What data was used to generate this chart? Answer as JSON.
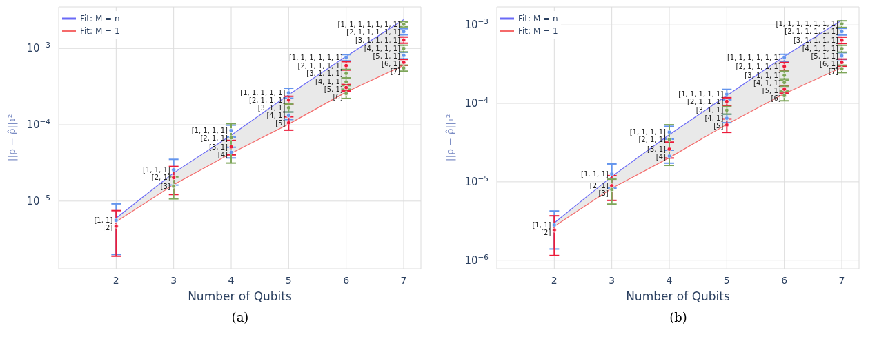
{
  "chart_data": [
    {
      "type": "scatter",
      "xlabel": "Number of Qubits",
      "ylabel": "||ρ − ρ̂||₁²",
      "xlim": [
        1,
        7.3
      ],
      "xticks": [
        2,
        3,
        4,
        5,
        6,
        7
      ],
      "ylim": [
        1.3e-06,
        0.0035
      ],
      "yticks": [
        {
          "value": 1e-05,
          "label": "10$^{−5}$"
        },
        {
          "value": 0.0001,
          "label": "10$^{−4}$"
        },
        {
          "value": 0.001,
          "label": "10$^{−3}$"
        }
      ],
      "log": true,
      "grid": true,
      "legend": "top left",
      "series": [
        {
          "type": "line",
          "marker": "none",
          "name": "Fit: M = n",
          "color": "#6a6af7",
          "x": [
            2,
            3,
            4,
            5,
            6,
            7
          ],
          "values": [
            6e-06,
            2.34e-05,
            7.3e-05,
            0.000247,
            0.000786,
            0.00238
          ],
          "lower": [
            5.37e-06,
            1.64e-05,
            4.23e-05,
            0.000102,
            0.000268,
            0.0006
          ],
          "upper": [
            6e-06,
            2.34e-05,
            7.3e-05,
            0.000247,
            0.000786,
            0.00238
          ]
        },
        {
          "type": "line",
          "marker": "none",
          "name": "Fit: M = 1",
          "color": "#f56a6a",
          "x": [
            2,
            3,
            4,
            5,
            6,
            7
          ],
          "values": [
            5.37e-06,
            1.64e-05,
            4.23e-05,
            0.000102,
            0.000268,
            0.0006
          ]
        },
        {
          "marker": "circle",
          "color": "#6495ed",
          "x": [
            2,
            3,
            4,
            4,
            5,
            5,
            6,
            7,
            7
          ],
          "values": [
            5.6e-06,
            2.57e-05,
            8.38e-05,
            4.37e-05,
            0.000262,
            0.000132,
            0.000759,
            0.00166,
            0.00081
          ],
          "errors": [
            3.6e-06,
            9.5e-06,
            1.5e-05,
            7e-06,
            3.9e-05,
            1.5e-05,
            7e-05,
            0.00015,
            8e-05
          ]
        },
        {
          "marker": "circle",
          "color": "#ec1c3a",
          "x": [
            2,
            3,
            4,
            5,
            5,
            6,
            6,
            7,
            7
          ],
          "values": [
            4.7e-06,
            2.03e-05,
            5.13e-05,
            0.000211,
            0.000106,
            0.000596,
            0.000307,
            0.00129,
            0.000658
          ],
          "errors": [
            2.8e-06,
            8.1e-06,
            1.1e-05,
            2.5e-05,
            2.1e-05,
            7.5e-05,
            3e-05,
            0.00012,
            6e-05
          ]
        },
        {
          "marker": "circle",
          "color": "#7ea65a",
          "x": [
            3,
            4,
            5,
            6,
            6,
            6,
            7,
            7,
            7
          ],
          "values": [
            1.57e-05,
            6.75e-05,
            0.000167,
            0.000471,
            0.000365,
            0.000257,
            0.00207,
            0.001,
            0.000554
          ],
          "errors": [
            5e-06,
            3.6e-05,
            2e-05,
            6e-05,
            4e-05,
            3.6e-05,
            0.00015,
            0.0001,
            5e-05
          ]
        }
      ],
      "annotations": [
        "(a)",
        {
          "text": "[1, 1]",
          "x": 2,
          "y": 5.6e-06
        },
        {
          "text": "[2]",
          "x": 2,
          "y": 4.7e-06
        },
        {
          "text": "[1, 1, 1]",
          "x": 3,
          "y": 2.57e-05
        },
        {
          "text": "[2, 1]",
          "x": 3,
          "y": 2.03e-05
        },
        {
          "text": "[3]",
          "x": 3,
          "y": 1.57e-05
        },
        {
          "text": "[1, 1, 1, 1]",
          "x": 4,
          "y": 8.38e-05
        },
        {
          "text": "[2, 1, 1]",
          "x": 4,
          "y": 6.75e-05
        },
        {
          "text": "[3, 1]",
          "x": 4,
          "y": 5.13e-05
        },
        {
          "text": "[4]",
          "x": 4,
          "y": 4.37e-05
        },
        {
          "text": "[1, 1, 1, 1, 1]",
          "x": 5,
          "y": 0.000262
        },
        {
          "text": "[2, 1, 1, 1]",
          "x": 5,
          "y": 0.000211
        },
        {
          "text": "[3, 1, 1]",
          "x": 5,
          "y": 0.000167
        },
        {
          "text": "[4, 1]",
          "x": 5,
          "y": 0.000132
        },
        {
          "text": "[5]",
          "x": 5,
          "y": 0.000106
        },
        {
          "text": "[1, 1, 1, 1, 1, 1]",
          "x": 6,
          "y": 0.000759
        },
        {
          "text": "[2, 1, 1, 1, 1]",
          "x": 6,
          "y": 0.000596
        },
        {
          "text": "[3, 1, 1, 1]",
          "x": 6,
          "y": 0.000471
        },
        {
          "text": "[4, 1, 1]",
          "x": 6,
          "y": 0.000365
        },
        {
          "text": "[5, 1]",
          "x": 6,
          "y": 0.000307
        },
        {
          "text": "[6]",
          "x": 6,
          "y": 0.000257
        },
        {
          "text": "[1, 1, 1, 1, 1, 1, 1]",
          "x": 7,
          "y": 0.00207
        },
        {
          "text": "[2, 1, 1, 1, 1, 1]",
          "x": 7,
          "y": 0.00166
        },
        {
          "text": "[3, 1, 1, 1, 1]",
          "x": 7,
          "y": 0.00129
        },
        {
          "text": "[4, 1, 1, 1]",
          "x": 7,
          "y": 0.001
        },
        {
          "text": "[5, 1, 1]",
          "x": 7,
          "y": 0.00081
        },
        {
          "text": "[6, 1]",
          "x": 7,
          "y": 0.000658
        },
        {
          "text": "[7]",
          "x": 7,
          "y": 0.000554
        }
      ]
    },
    {
      "type": "scatter",
      "xlabel": "Number of Qubits",
      "ylabel": "||ρ − ρ̂||₁²",
      "xlim": [
        1,
        7.3
      ],
      "xticks": [
        2,
        3,
        4,
        5,
        6,
        7
      ],
      "ylim": [
        7.8e-07,
        0.0017
      ],
      "yticks": [
        {
          "value": 1e-06,
          "label": "10$^{−6}$"
        },
        {
          "value": 1e-05,
          "label": "10$^{−5}$"
        },
        {
          "value": 0.0001,
          "label": "10$^{−4}$"
        },
        {
          "value": 0.001,
          "label": "10$^{−3}$"
        }
      ],
      "log": true,
      "grid": true,
      "legend": "top left",
      "series": [
        {
          "type": "line",
          "marker": "none",
          "name": "Fit: M = n",
          "color": "#6a6af7",
          "x": [
            2,
            3,
            4,
            5,
            6,
            7
          ],
          "values": [
            2.99e-06,
            1.17e-05,
            3.98e-05,
            0.000126,
            0.000398,
            0.00115
          ],
          "lower": [
            2.71e-06,
            8.26e-06,
            2.03e-05,
            5.41e-05,
            0.000133,
            0.000287
          ],
          "upper": [
            2.99e-06,
            1.17e-05,
            3.98e-05,
            0.000126,
            0.000398,
            0.00115
          ]
        },
        {
          "type": "line",
          "marker": "none",
          "name": "Fit: M = 1",
          "color": "#f56a6a",
          "x": [
            2,
            3,
            4,
            5,
            6,
            7
          ],
          "values": [
            2.71e-06,
            8.26e-06,
            2.03e-05,
            5.41e-05,
            0.000133,
            0.000287
          ]
        },
        {
          "marker": "circle",
          "color": "#6495ed",
          "x": [
            2,
            3,
            4,
            4,
            5,
            5,
            6,
            7,
            7
          ],
          "values": [
            2.82e-06,
            1.26e-05,
            4.3e-05,
            2.13e-05,
            0.000131,
            6.47e-05,
            0.000383,
            0.000825,
            0.000403
          ],
          "errors": [
            1.43e-06,
            4.3e-06,
            8e-06,
            4e-06,
            2e-05,
            8e-06,
            4e-05,
            8e-05,
            4e-05
          ]
        },
        {
          "marker": "circle",
          "color": "#ec1c3a",
          "x": [
            2,
            3,
            4,
            5,
            5,
            6,
            6,
            7,
            7
          ],
          "values": [
            2.42e-06,
            8.9e-06,
            2.61e-05,
            0.000106,
            5.31e-05,
            0.000297,
            0.000152,
            0.00064,
            0.000333
          ],
          "errors": [
            1.27e-06,
            3.1e-06,
            6e-06,
            1.2e-05,
            1.04e-05,
            3.5e-05,
            1.7e-05,
            6e-05,
            3.5e-05
          ]
        },
        {
          "marker": "circle",
          "color": "#7ea65a",
          "x": [
            3,
            4,
            5,
            6,
            6,
            6,
            7,
            7,
            7
          ],
          "values": [
            8e-06,
            3.48e-05,
            8.2e-05,
            0.000228,
            0.000185,
            0.000126,
            0.00103,
            0.0005,
            0.000277
          ],
          "errors": [
            2.8e-06,
            1.86e-05,
            9e-06,
            3e-05,
            2e-05,
            1.8e-05,
            0.0001,
            5e-05,
            3e-05
          ]
        }
      ],
      "annotations": [
        "(b)",
        {
          "text": "[1, 1]",
          "x": 2,
          "y": 2.82e-06
        },
        {
          "text": "[2]",
          "x": 2,
          "y": 2.42e-06
        },
        {
          "text": "[1, 1, 1]",
          "x": 3,
          "y": 1.26e-05
        },
        {
          "text": "[2, 1]",
          "x": 3,
          "y": 8.9e-06
        },
        {
          "text": "[3]",
          "x": 3,
          "y": 8e-06
        },
        {
          "text": "[1, 1, 1, 1]",
          "x": 4,
          "y": 4.3e-05
        },
        {
          "text": "[2, 1, 1]",
          "x": 4,
          "y": 3.48e-05
        },
        {
          "text": "[3, 1]",
          "x": 4,
          "y": 2.61e-05
        },
        {
          "text": "[4]",
          "x": 4,
          "y": 2.13e-05
        },
        {
          "text": "[1, 1, 1, 1, 1]",
          "x": 5,
          "y": 0.000131
        },
        {
          "text": "[2, 1, 1, 1]",
          "x": 5,
          "y": 0.000106
        },
        {
          "text": "[3, 1, 1]",
          "x": 5,
          "y": 8.2e-05
        },
        {
          "text": "[4, 1]",
          "x": 5,
          "y": 6.47e-05
        },
        {
          "text": "[5]",
          "x": 5,
          "y": 5.31e-05
        },
        {
          "text": "[1, 1, 1, 1, 1, 1]",
          "x": 6,
          "y": 0.000383
        },
        {
          "text": "[2, 1, 1, 1, 1]",
          "x": 6,
          "y": 0.000297
        },
        {
          "text": "[3, 1, 1, 1]",
          "x": 6,
          "y": 0.000228
        },
        {
          "text": "[4, 1, 1]",
          "x": 6,
          "y": 0.000185
        },
        {
          "text": "[5, 1]",
          "x": 6,
          "y": 0.000152
        },
        {
          "text": "[6]",
          "x": 6,
          "y": 0.000126
        },
        {
          "text": "[1, 1, 1, 1, 1, 1, 1]",
          "x": 7,
          "y": 0.00103
        },
        {
          "text": "[2, 1, 1, 1, 1, 1]",
          "x": 7,
          "y": 0.000825
        },
        {
          "text": "[3, 1, 1, 1, 1]",
          "x": 7,
          "y": 0.00064
        },
        {
          "text": "[4, 1, 1, 1]",
          "x": 7,
          "y": 0.0005
        },
        {
          "text": "[5, 1, 1]",
          "x": 7,
          "y": 0.000403
        },
        {
          "text": "[6, 1]",
          "x": 7,
          "y": 0.000333
        },
        {
          "text": "[7]",
          "x": 7,
          "y": 0.000277
        }
      ]
    }
  ]
}
